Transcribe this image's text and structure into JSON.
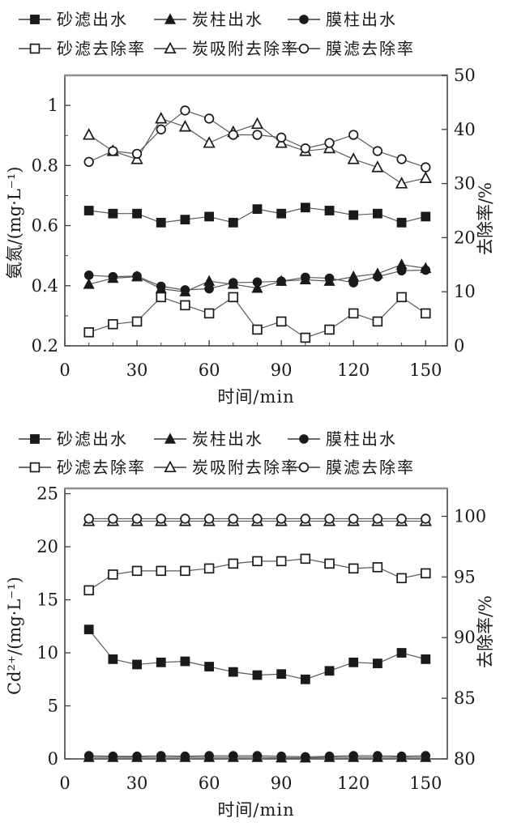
{
  "page": {
    "background": "#ffffff",
    "ink_color": "#1a1a1a",
    "line_color": "#5a5a5a",
    "axis_color": "#3c3c3c"
  },
  "chart_data": [
    {
      "id": "ammonia-nitrogen",
      "type": "line",
      "title": "",
      "xlabel": "时间/min",
      "ylabel_left": "氨氮/(mg·L⁻¹)",
      "ylabel_right": "去除率/%",
      "x_axis": {
        "min": 0,
        "max": 159,
        "major_ticks": [
          0,
          30,
          60,
          90,
          120,
          150
        ],
        "minor_step": 10
      },
      "y_left_axis": {
        "min": 0.2,
        "max": 1.1,
        "tick_labels": [
          "0.2",
          "0.4",
          "0.6",
          "0.8",
          "1"
        ],
        "tick_values": [
          0.2,
          0.4,
          0.6,
          0.8,
          1
        ],
        "minor_values": [
          0.3,
          0.5,
          0.7,
          0.9
        ]
      },
      "y_right_axis": {
        "min": 0,
        "max": 50,
        "tick_labels": [
          "0",
          "10",
          "20",
          "30",
          "40",
          "50"
        ],
        "tick_values": [
          0,
          10,
          20,
          30,
          40,
          50
        ],
        "minor_values": []
      },
      "legend_rows_y": [
        24,
        60
      ],
      "time_min": [
        10,
        20,
        30,
        40,
        50,
        60,
        70,
        80,
        90,
        100,
        110,
        120,
        130,
        140,
        150
      ],
      "series": [
        {
          "key": "sand-effluent",
          "label": "砂滤出水",
          "marker": "square",
          "fill": "filled",
          "axis": "left",
          "values": [
            0.65,
            0.64,
            0.64,
            0.61,
            0.62,
            0.63,
            0.61,
            0.655,
            0.64,
            0.66,
            0.65,
            0.635,
            0.64,
            0.61,
            0.63
          ]
        },
        {
          "key": "carbon-effluent",
          "label": "炭柱出水",
          "marker": "triangle",
          "fill": "filled",
          "axis": "left",
          "values": [
            0.405,
            0.425,
            0.43,
            0.39,
            0.38,
            0.415,
            0.405,
            0.392,
            0.415,
            0.42,
            0.415,
            0.43,
            0.44,
            0.47,
            0.458
          ]
        },
        {
          "key": "membrane-effluent",
          "label": "膜柱出水",
          "marker": "circle",
          "fill": "filled",
          "axis": "left",
          "values": [
            0.435,
            0.43,
            0.432,
            0.398,
            0.386,
            0.39,
            0.41,
            0.412,
            0.415,
            0.428,
            0.425,
            0.41,
            0.43,
            0.45,
            0.452
          ]
        },
        {
          "key": "sand-removal",
          "label": "砂滤去除率",
          "marker": "square",
          "fill": "open",
          "axis": "right",
          "values": [
            2.5,
            4,
            4.5,
            9,
            7.5,
            6,
            9,
            3,
            4.5,
            1.5,
            3,
            6,
            4.5,
            9,
            6
          ]
        },
        {
          "key": "carbon-removal",
          "label": "炭吸附去除率",
          "marker": "triangle",
          "fill": "open",
          "axis": "right",
          "values": [
            39,
            36,
            34.5,
            42,
            40.5,
            37.5,
            39.5,
            41,
            37.5,
            36,
            36.5,
            34.5,
            33,
            30,
            31
          ]
        },
        {
          "key": "membrane-removal",
          "label": "膜滤去除率",
          "marker": "circle",
          "fill": "open",
          "axis": "right",
          "values": [
            34,
            36,
            35.5,
            40,
            43.5,
            42,
            39,
            39,
            38.5,
            36.5,
            37.5,
            39,
            36,
            34.5,
            33
          ]
        }
      ]
    },
    {
      "id": "cadmium",
      "type": "line",
      "title": "",
      "xlabel": "时间/min",
      "ylabel_left": "Cd²⁺/(mg·L⁻¹)",
      "ylabel_right": "去除率/%",
      "x_axis": {
        "min": 0,
        "max": 159,
        "major_ticks": [
          0,
          30,
          60,
          90,
          120,
          150
        ],
        "minor_step": 10
      },
      "y_left_axis": {
        "min": 0,
        "max": 25.5,
        "tick_labels": [
          "0",
          "5",
          "10",
          "15",
          "20",
          "25"
        ],
        "tick_values": [
          0,
          5,
          10,
          15,
          20,
          25
        ],
        "minor_values": []
      },
      "y_right_axis": {
        "min": 80,
        "max": 102.3,
        "tick_labels": [
          "80",
          "85",
          "90",
          "95",
          "100"
        ],
        "tick_values": [
          80,
          85,
          90,
          95,
          100
        ],
        "minor_values": []
      },
      "legend_rows_y": [
        32,
        67
      ],
      "time_min": [
        10,
        20,
        30,
        40,
        50,
        60,
        70,
        80,
        90,
        100,
        110,
        120,
        130,
        140,
        150
      ],
      "series": [
        {
          "key": "sand-effluent",
          "label": "砂滤出水",
          "marker": "square",
          "fill": "filled",
          "axis": "left",
          "values": [
            12.2,
            9.4,
            8.9,
            9.1,
            9.2,
            8.7,
            8.2,
            7.9,
            8.0,
            7.5,
            8.3,
            9.1,
            9.0,
            10.0,
            9.4
          ]
        },
        {
          "key": "carbon-effluent",
          "label": "炭柱出水",
          "marker": "triangle",
          "fill": "filled",
          "axis": "left",
          "values": [
            0.15,
            0.15,
            0.15,
            0.15,
            0.15,
            0.15,
            0.15,
            0.15,
            0.1,
            0.1,
            0.15,
            0.15,
            0.15,
            0.15,
            0.15
          ]
        },
        {
          "key": "membrane-effluent",
          "label": "膜柱出水",
          "marker": "circle",
          "fill": "filled",
          "axis": "left",
          "values": [
            0.3,
            0.25,
            0.25,
            0.3,
            0.25,
            0.3,
            0.3,
            0.3,
            0.25,
            0.2,
            0.25,
            0.3,
            0.3,
            0.25,
            0.3
          ]
        },
        {
          "key": "sand-removal",
          "label": "砂滤去除率",
          "marker": "square",
          "fill": "open",
          "axis": "right",
          "values": [
            93.9,
            95.2,
            95.5,
            95.5,
            95.5,
            95.7,
            96.1,
            96.3,
            96.3,
            96.5,
            96.1,
            95.7,
            95.8,
            94.9,
            95.3
          ]
        },
        {
          "key": "carbon-removal",
          "label": "炭吸附去除率",
          "marker": "triangle",
          "fill": "open",
          "axis": "right",
          "values": [
            99.6,
            99.6,
            99.6,
            99.6,
            99.6,
            99.6,
            99.6,
            99.6,
            99.6,
            99.6,
            99.6,
            99.6,
            99.6,
            99.6,
            99.6
          ]
        },
        {
          "key": "membrane-removal",
          "label": "膜滤去除率",
          "marker": "circle",
          "fill": "open",
          "axis": "right",
          "values": [
            99.8,
            99.8,
            99.8,
            99.8,
            99.8,
            99.8,
            99.8,
            99.8,
            99.8,
            99.8,
            99.8,
            99.8,
            99.8,
            99.8,
            99.8
          ]
        }
      ]
    }
  ]
}
